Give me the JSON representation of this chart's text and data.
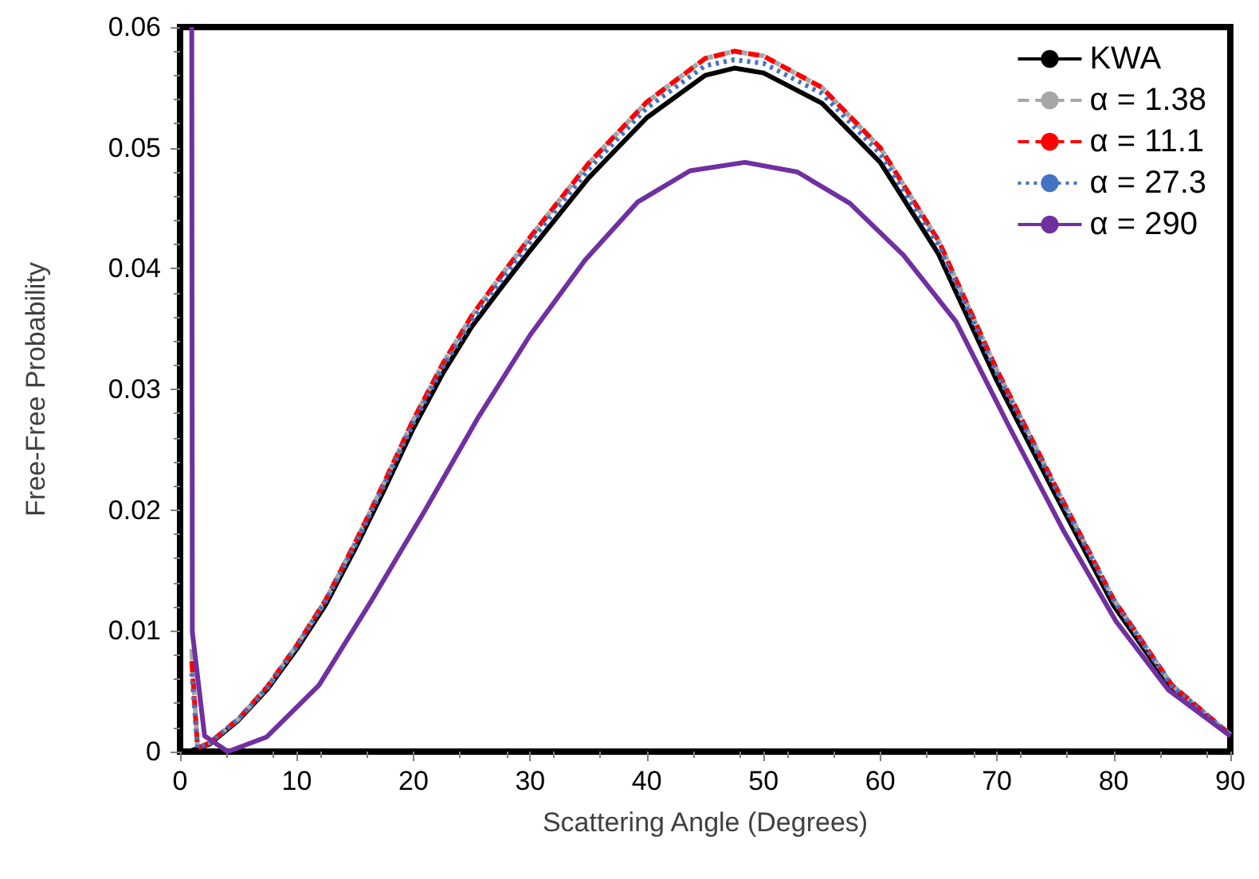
{
  "chart_data": {
    "type": "line",
    "xlabel": "Scattering Angle (Degrees)",
    "ylabel": "Free-Free Probability",
    "xlim": [
      0,
      90
    ],
    "xticks": [
      0,
      10,
      20,
      30,
      40,
      50,
      60,
      70,
      80,
      90
    ],
    "ylim": [
      0,
      0.06
    ],
    "yticks": [
      0,
      0.01,
      0.02,
      0.03,
      0.04,
      0.05,
      0.06
    ],
    "grid": false,
    "legend": "top right",
    "marker": "none",
    "series": [
      {
        "name": "KWA",
        "color": "#000000",
        "line_style": "solid",
        "x": [
          1,
          2.5,
          5,
          7.5,
          10,
          12.5,
          15,
          17.5,
          20,
          22.5,
          25,
          27.5,
          30,
          35,
          40,
          45,
          47.5,
          50,
          55,
          60,
          65,
          70,
          75,
          80,
          85,
          90
        ],
        "values": [
          0.0001,
          0.0006,
          0.0026,
          0.0052,
          0.0085,
          0.0122,
          0.0168,
          0.0217,
          0.0268,
          0.0313,
          0.0352,
          0.0384,
          0.0415,
          0.0475,
          0.0525,
          0.056,
          0.0566,
          0.0562,
          0.0537,
          0.0488,
          0.0412,
          0.0307,
          0.0213,
          0.0121,
          0.0052,
          0.0013
        ]
      },
      {
        "name": "α = 1.38",
        "color": "#a6a6a6",
        "line_style": "dashed",
        "x": [
          1,
          1.5,
          2.5,
          5,
          7.5,
          10,
          12.5,
          15,
          17.5,
          20,
          22.5,
          25,
          27.5,
          30,
          35,
          40,
          45,
          47.5,
          50,
          55,
          60,
          65,
          70,
          75,
          80,
          85,
          90
        ],
        "values": [
          0.0085,
          0.0003,
          0.0007,
          0.0027,
          0.0054,
          0.0088,
          0.0126,
          0.0173,
          0.0223,
          0.0275,
          0.0321,
          0.0361,
          0.0394,
          0.0426,
          0.0487,
          0.0538,
          0.0574,
          0.058,
          0.0576,
          0.055,
          0.05,
          0.0423,
          0.0316,
          0.022,
          0.0126,
          0.0055,
          0.0014
        ]
      },
      {
        "name": "α = 11.1",
        "color": "#ff0000",
        "line_style": "dashed",
        "x": [
          1,
          1.5,
          2.5,
          5,
          7.5,
          10,
          12.5,
          15,
          17.5,
          20,
          22.5,
          25,
          27.5,
          30,
          35,
          40,
          45,
          47.5,
          50,
          55,
          60,
          65,
          70,
          75,
          80,
          85,
          90
        ],
        "values": [
          0.0075,
          0.0003,
          0.0007,
          0.0027,
          0.0054,
          0.0088,
          0.0126,
          0.0173,
          0.0223,
          0.0275,
          0.0321,
          0.0361,
          0.0394,
          0.0426,
          0.0487,
          0.0538,
          0.0574,
          0.058,
          0.0576,
          0.055,
          0.05,
          0.0423,
          0.0316,
          0.022,
          0.0126,
          0.0055,
          0.0014
        ]
      },
      {
        "name": "α = 27.3",
        "color": "#4472c4",
        "line_style": "dotted",
        "x": [
          1,
          1.5,
          2.5,
          5,
          7.5,
          10,
          12.5,
          15,
          17.5,
          20,
          22.5,
          25,
          27.5,
          30,
          35,
          40,
          45,
          47.5,
          50,
          55,
          60,
          65,
          70,
          75,
          80,
          85,
          90
        ],
        "values": [
          0.0065,
          0.0003,
          0.0007,
          0.0027,
          0.0053,
          0.0087,
          0.0125,
          0.0171,
          0.0221,
          0.0272,
          0.0318,
          0.0357,
          0.039,
          0.0422,
          0.0482,
          0.0533,
          0.0568,
          0.0573,
          0.057,
          0.0545,
          0.0495,
          0.0419,
          0.0313,
          0.0218,
          0.0125,
          0.0054,
          0.0014
        ]
      },
      {
        "name": "α = 290",
        "color": "#7030a0",
        "line_style": "solid",
        "x": [
          1,
          1.05,
          2.1,
          4.1,
          7.4,
          11.9,
          16.4,
          21,
          25.5,
          30,
          34.7,
          39.2,
          43.7,
          48.4,
          52.9,
          57.4,
          62,
          66.5,
          71,
          75.7,
          80.2,
          84.7,
          90
        ],
        "values": [
          0.06,
          0.0099,
          0.0013,
          0,
          0.0012,
          0.0055,
          0.0125,
          0.02,
          0.0276,
          0.0345,
          0.0407,
          0.0455,
          0.0481,
          0.0488,
          0.048,
          0.0454,
          0.0411,
          0.0356,
          0.027,
          0.0183,
          0.0108,
          0.0051,
          0.0013
        ]
      }
    ]
  }
}
